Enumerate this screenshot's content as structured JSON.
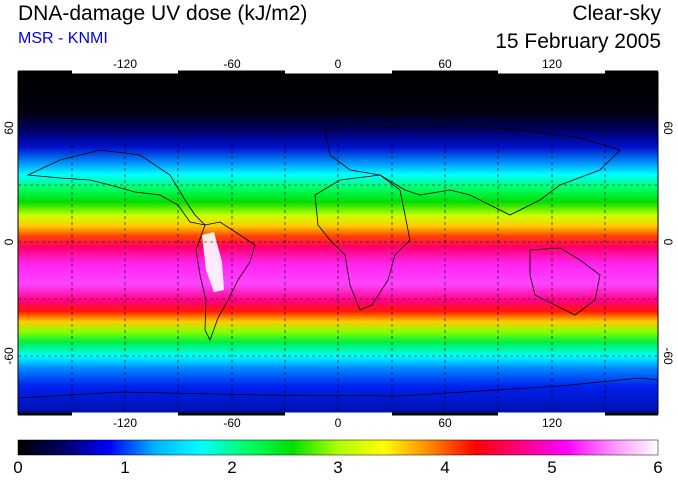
{
  "header": {
    "title": "DNA-damage UV dose (kJ/m2)",
    "subtitle": "MSR - KNMI",
    "condition": "Clear-sky",
    "date": "15 February 2005"
  },
  "map": {
    "lon_ticks": [
      "-120",
      "-60",
      "0",
      "60",
      "120"
    ],
    "lat_ticks_left": [
      "60",
      "0",
      "-60"
    ],
    "lat_ticks_right": [
      "60",
      "0",
      "-60"
    ]
  },
  "colorbar": {
    "labels": [
      "0",
      "1",
      "2",
      "3",
      "4",
      "5",
      "6"
    ],
    "min": 0,
    "max": 6,
    "stops": [
      "#000000",
      "#000066",
      "#0000ff",
      "#00b4ff",
      "#00ffff",
      "#00ff66",
      "#00e000",
      "#b0ff00",
      "#ffff00",
      "#ff8800",
      "#ff0000",
      "#ff0080",
      "#ff00ff",
      "#ff90ff",
      "#ffffff"
    ]
  }
}
